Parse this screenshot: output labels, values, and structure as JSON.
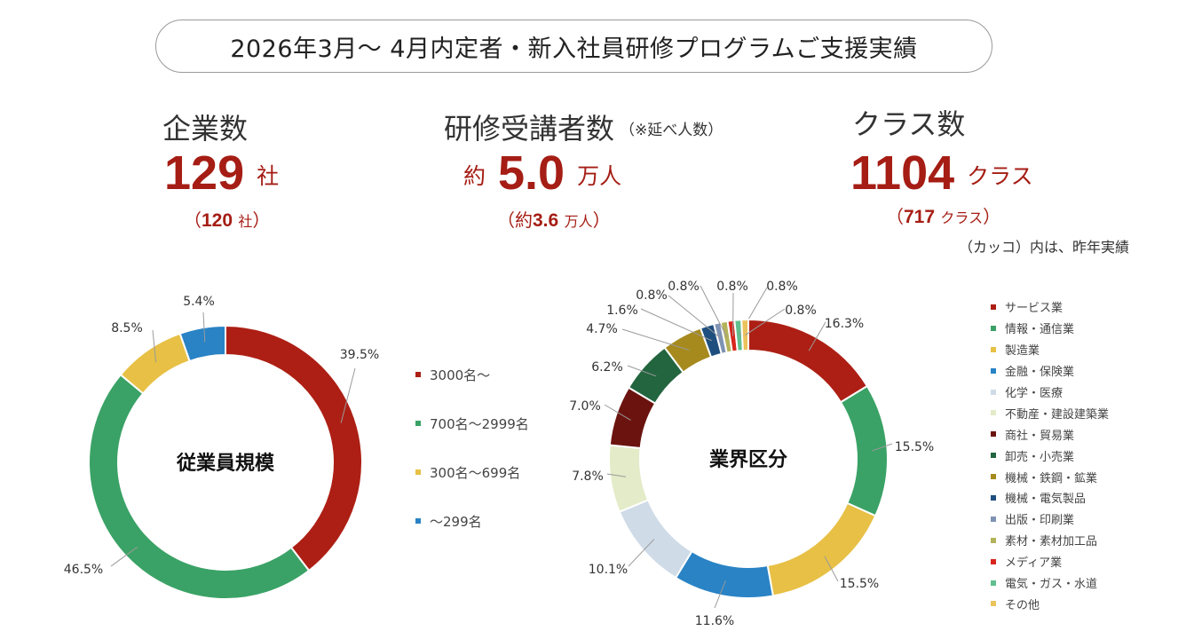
{
  "header": {
    "title": "2026年3月～ 4月内定者・新入社員研修プログラムご支援実績"
  },
  "stats": {
    "companies": {
      "label": "企業数",
      "value": "129",
      "unit": "社",
      "prev_open": "（",
      "prev_value": "120",
      "prev_unit": "社",
      "prev_close": "）"
    },
    "participants": {
      "label": "研修受講者数",
      "note": "（※延べ人数）",
      "prefix": "約",
      "value": "5.0",
      "unit": "万人",
      "prev_open": "（約",
      "prev_value": "3.6",
      "prev_unit": "万人",
      "prev_close": "）"
    },
    "classes": {
      "label": "クラス数",
      "value": "1104",
      "unit": "クラス",
      "prev_open": "（",
      "prev_value": "717",
      "prev_unit": "クラス",
      "prev_close": "）"
    }
  },
  "footnote": "（カッコ）内は、昨年実績",
  "chart_data": [
    {
      "type": "pie",
      "subtype": "donut",
      "title": "従業員規模",
      "legend_position": "right",
      "categories": [
        "3000名～",
        "700名～2999名",
        "300名～699名",
        "～299名"
      ],
      "values": [
        39.5,
        46.5,
        8.5,
        5.4
      ],
      "labels": [
        "39.5%",
        "46.5%",
        "8.5%",
        "5.4%"
      ],
      "colors": [
        "#ad1f14",
        "#3aa266",
        "#e7c045",
        "#2983c5"
      ]
    },
    {
      "type": "pie",
      "subtype": "donut",
      "title": "業界区分",
      "legend_position": "right",
      "categories": [
        "サービス業",
        "情報・通信業",
        "製造業",
        "金融・保険業",
        "化学・医療",
        "不動産・建設建築業",
        "商社・貿易業",
        "卸売・小売業",
        "機械・鉄鋼・鉱業",
        "機械・電気製品",
        "出版・印刷業",
        "素材・素材加工品",
        "メディア業",
        "電気・ガス・水道",
        "その他"
      ],
      "values": [
        16.3,
        15.5,
        15.5,
        11.6,
        10.1,
        7.8,
        7.0,
        6.2,
        4.7,
        1.6,
        0.8,
        0.8,
        0.8,
        0.8,
        0.8
      ],
      "labels": [
        "16.3%",
        "15.5%",
        "15.5%",
        "11.6%",
        "10.1%",
        "7.8%",
        "7.0%",
        "6.2%",
        "4.7%",
        "1.6%",
        "0.8%",
        "0.8%",
        "0.8%",
        "0.8%",
        "0.8%"
      ],
      "colors": [
        "#ad1f14",
        "#3aa266",
        "#e7c045",
        "#2983c5",
        "#cfdbe7",
        "#e3ebc8",
        "#6b130f",
        "#22653f",
        "#a68a1e",
        "#1f4f7f",
        "#7f93b3",
        "#b4b35a",
        "#d8261e",
        "#60bf8e",
        "#ebc35c"
      ]
    }
  ]
}
